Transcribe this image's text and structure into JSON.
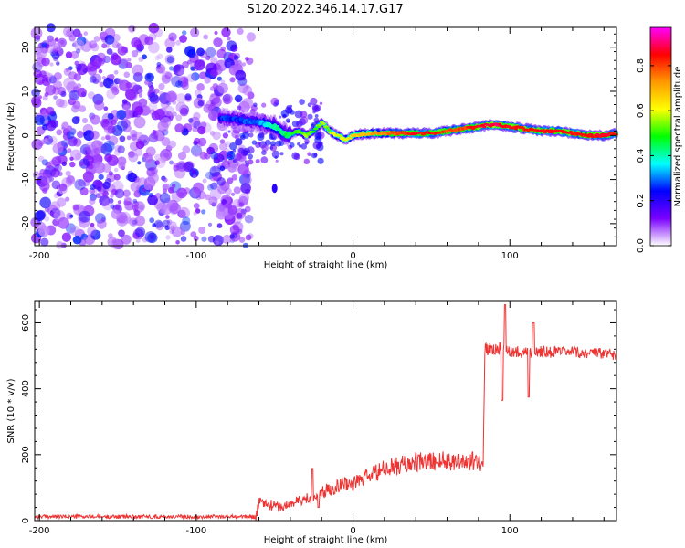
{
  "figure": {
    "title": "S120.2022.346.14.17.G17"
  },
  "chart_data": [
    {
      "type": "heatmap",
      "xlabel": "Height of straight line (km)",
      "ylabel": "Frequency (Hz)",
      "xlim": [
        -203,
        168
      ],
      "ylim": [
        -25,
        24.5
      ],
      "xticks": [
        -200,
        -100,
        0,
        100
      ],
      "yticks": [
        -20,
        -10,
        0,
        10,
        20
      ],
      "colorbar": {
        "label": "Normalized spectral amplitude",
        "range": [
          0,
          0.97
        ],
        "ticks": [
          "0.0",
          "0.2",
          "0.4",
          "0.6",
          "0.8"
        ],
        "tick_values": [
          0.0,
          0.2,
          0.4,
          0.6,
          0.8
        ],
        "colormap": "gist_ncar-like",
        "stops": [
          "#ffffff",
          "#7a00ff",
          "#0000ff",
          "#00ffff",
          "#00ff00",
          "#ffff00",
          "#ff9900",
          "#ff0000",
          "#ff00ff"
        ]
      },
      "noise_region_x": [
        -203,
        -75
      ],
      "noise_level": 0.15,
      "ridge": {
        "x": [
          -85,
          -60,
          -50,
          -42,
          -35,
          -30,
          -25,
          -20,
          -15,
          -10,
          -5,
          0,
          10,
          20,
          30,
          40,
          50,
          60,
          70,
          80,
          90,
          100,
          110,
          120,
          130,
          140,
          150,
          160,
          168
        ],
        "freq": [
          4,
          3,
          2,
          0,
          1,
          0,
          1,
          3,
          1,
          0,
          -1,
          0,
          0.5,
          0.5,
          0.5,
          0.5,
          0.5,
          1,
          1.5,
          2,
          2.5,
          2,
          1.5,
          1,
          1,
          0.5,
          0,
          0,
          0.5
        ],
        "amplitude": [
          0.25,
          0.3,
          0.4,
          0.45,
          0.5,
          0.55,
          0.5,
          0.55,
          0.55,
          0.6,
          0.6,
          0.65,
          0.7,
          0.75,
          0.8,
          0.85,
          0.85,
          0.8,
          0.8,
          0.85,
          0.9,
          0.85,
          0.85,
          0.85,
          0.85,
          0.85,
          0.85,
          0.85,
          0.85
        ]
      },
      "outlier": {
        "x": -50,
        "freq": -12
      }
    },
    {
      "type": "line",
      "color": "#ee3333",
      "xlabel": "Height of straight line (km)",
      "ylabel": "SNR (10 * v/v)",
      "xlim": [
        -203,
        168
      ],
      "ylim": [
        0,
        665
      ],
      "xticks": [
        -200,
        -100,
        0,
        100
      ],
      "yticks": [
        0,
        200,
        400,
        600
      ],
      "x": [
        -203,
        -180,
        -150,
        -120,
        -90,
        -62,
        -60,
        -55,
        -50,
        -45,
        -40,
        -35,
        -30,
        -25,
        -20,
        -15,
        -10,
        -5,
        0,
        5,
        10,
        20,
        30,
        40,
        50,
        60,
        70,
        80,
        83,
        84,
        85,
        90,
        95,
        100,
        110,
        120,
        130,
        140,
        150,
        160,
        168
      ],
      "y": [
        12,
        12,
        12,
        12,
        12,
        12,
        55,
        50,
        45,
        40,
        50,
        60,
        65,
        75,
        85,
        95,
        105,
        115,
        110,
        125,
        135,
        155,
        168,
        176,
        180,
        182,
        182,
        178,
        178,
        530,
        520,
        520,
        525,
        515,
        510,
        515,
        510,
        510,
        508,
        505,
        505
      ],
      "spikes": [
        {
          "x": 95,
          "y": 365
        },
        {
          "x": 97,
          "y": 655
        },
        {
          "x": 112,
          "y": 375
        },
        {
          "x": 115,
          "y": 600
        },
        {
          "x": -26,
          "y": 158
        },
        {
          "x": -22,
          "y": 40
        }
      ]
    }
  ]
}
